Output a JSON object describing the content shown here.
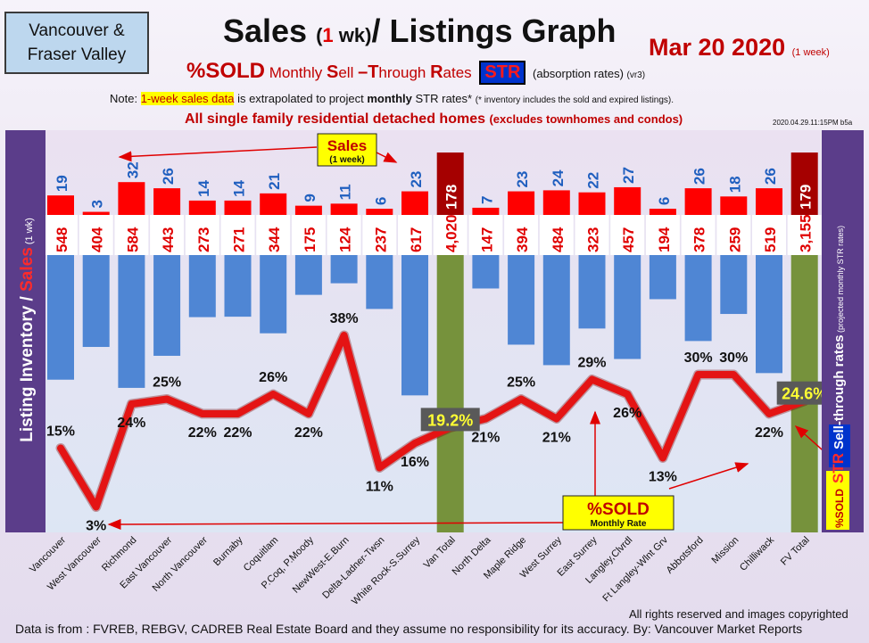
{
  "header": {
    "region_line1": "Vancouver &",
    "region_line2": "Fraser Valley",
    "title_part1": "Sales ",
    "title_paren_open": "(",
    "title_one": "1",
    "title_wk": " wk)",
    "title_part2": "/ Listings Graph",
    "date": "Mar 20  2020 ",
    "date_note": "(1 week)",
    "sub_sold": "%SOLD",
    "sub_monthly": " Monthly ",
    "sub_s": "S",
    "sub_ell": "ell ",
    "sub_dash": "–",
    "sub_t": "T",
    "sub_hrough": "hrough ",
    "sub_r": "R",
    "sub_ates": "ates ",
    "str_badge": "STR",
    "absorption": " (absorption rates) ",
    "version": "(vr3)",
    "note_prefix": "Note: ",
    "note_highlight": "1-week sales data",
    "note_mid": " is extrapolated to project ",
    "note_bold": "monthly",
    "note_end": " STR rates* ",
    "note_small": "(* inventory includes the sold and expired listings).",
    "detached": "All single family residential detached homes ",
    "detached_small": "(excludes townhomes and condos)",
    "timestamp": "2020.04.29.11:15PM b5a"
  },
  "side_labels": {
    "left_inventory": "Listing Inventory",
    "left_slash": " / ",
    "left_sales": "Sales",
    "left_wk": " (1 wk)",
    "right_sold": "%SOLD",
    "right_str": "STR",
    "right_main": " Sell-through rates",
    "right_small": " (projected monthly STR rates)"
  },
  "annotations": {
    "sales_label": "Sales",
    "sales_sub": "(1 week)",
    "sold_label": "%SOLD",
    "sold_sub": "Monthly Rate"
  },
  "footer": {
    "source": "Data is from : FVREB, REBGV, CADREB Real Estate Board and they assume no responsibility for its accuracy. By: Vancouver Market Reports",
    "rights": "All rights reserved and  images copyrighted"
  },
  "colors": {
    "sales_bar": "#ff0000",
    "listing_bar": "#4f86d4",
    "total_bar": "#76923c",
    "total_sales": "#a50000",
    "str_line": "#e41414",
    "side_panel": "#5b3d8a"
  },
  "chart_data": {
    "type": "bar",
    "categories": [
      "Vancouver",
      "West Vancouver",
      "Richmond",
      "East Vancouver",
      "North Vancouver",
      "Burnaby",
      "Coquitlam",
      "P.Coq, P.Moody",
      "NewWest-E.Burn",
      "Delta-Ladner-Twsn",
      "White Rock-S.Surrey",
      "Van Total",
      "North Delta",
      "Maple Ridge",
      "West Surrey",
      "East Surrey",
      "Langley,Clvrdl",
      "Ft Langley-Wlnt Grv",
      "Abbotsford",
      "Mission",
      "Chilliwack",
      "FV Total"
    ],
    "series": [
      {
        "values": [
          19,
          3,
          32,
          26,
          14,
          14,
          21,
          9,
          11,
          6,
          23,
          178,
          7,
          23,
          24,
          22,
          27,
          6,
          26,
          18,
          26,
          179
        ]
      },
      {
        "values": [
          548,
          404,
          584,
          443,
          273,
          271,
          344,
          175,
          124,
          237,
          617,
          4020,
          147,
          394,
          484,
          323,
          457,
          194,
          378,
          259,
          519,
          3155
        ]
      },
      {
        "values": [
          15,
          3,
          24,
          25,
          22,
          22,
          26,
          22,
          38,
          11,
          16,
          19.2,
          21,
          25,
          21,
          29,
          26,
          13,
          30,
          30,
          22,
          24.6
        ]
      }
    ],
    "value_labels": {
      "sales": [
        "19",
        "3",
        "32",
        "26",
        "14",
        "14",
        "21",
        "9",
        "11",
        "6",
        "23",
        "178",
        "7",
        "23",
        "24",
        "22",
        "27",
        "6",
        "26",
        "18",
        "26",
        "179"
      ],
      "listings": [
        "548",
        "404",
        "584",
        "443",
        "273",
        "271",
        "344",
        "175",
        "124",
        "237",
        "617",
        "4,020",
        "147",
        "394",
        "484",
        "323",
        "457",
        "194",
        "378",
        "259",
        "519",
        "3,155"
      ],
      "str": [
        "15%",
        "3%",
        "24%",
        "25%",
        "22%",
        "22%",
        "26%",
        "22%",
        "38%",
        "11%",
        "16%",
        "19.2%",
        "21%",
        "25%",
        "21%",
        "29%",
        "26%",
        "13%",
        "30%",
        "30%",
        "22%",
        "24.6%"
      ]
    },
    "total_indices": [
      11,
      21
    ],
    "grid": false
  }
}
